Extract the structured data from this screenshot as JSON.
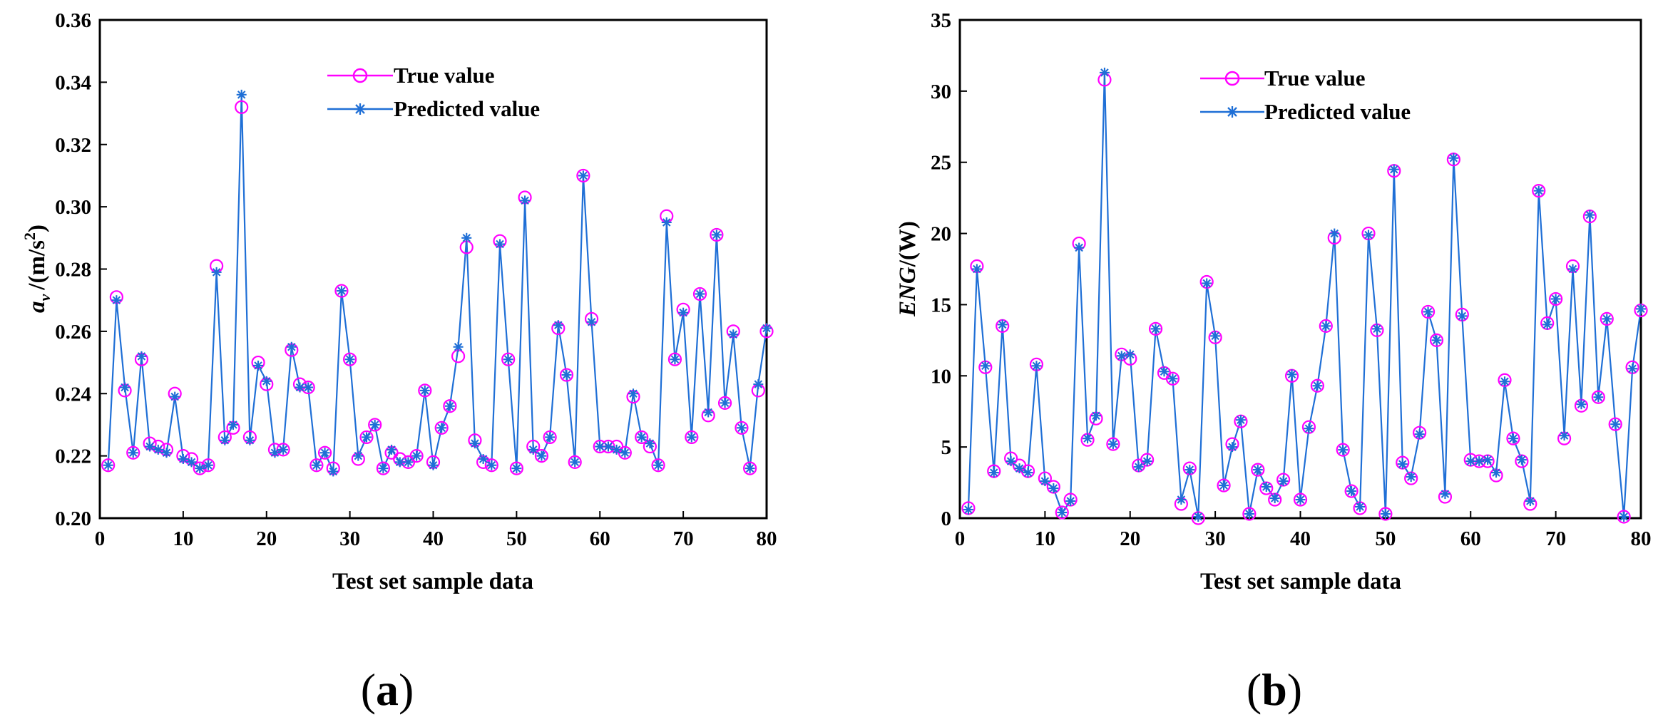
{
  "colors": {
    "true": "#ff00ff",
    "pred": "#1f6fd6",
    "axis": "#000000"
  },
  "chart_data": [
    {
      "type": "line",
      "panel_label": "a",
      "xlabel": "Test set sample data",
      "ylabel": {
        "var": "a",
        "sub": "v",
        "unit": "/(m/s",
        "sup": "2",
        "close": ")"
      },
      "xlim": [
        0,
        80
      ],
      "ylim": [
        0.2,
        0.36
      ],
      "xticks": [
        0,
        10,
        20,
        30,
        40,
        50,
        60,
        70,
        80
      ],
      "yticks": [
        0.2,
        0.22,
        0.24,
        0.26,
        0.28,
        0.3,
        0.32,
        0.34,
        0.36
      ],
      "ytick_labels": [
        "0.20",
        "0.22",
        "0.24",
        "0.26",
        "0.28",
        "0.30",
        "0.32",
        "0.34",
        "0.36"
      ],
      "legend": {
        "position": "top-center",
        "entries": [
          "True value",
          "Predicted value"
        ]
      },
      "series": [
        {
          "name": "True value",
          "marker": "circle",
          "values": [
            0.217,
            0.271,
            0.241,
            0.221,
            0.251,
            0.224,
            0.223,
            0.222,
            0.24,
            0.22,
            0.219,
            0.216,
            0.217,
            0.281,
            0.226,
            0.229,
            0.332,
            0.226,
            0.25,
            0.243,
            0.222,
            0.222,
            0.254,
            0.243,
            0.242,
            0.217,
            0.221,
            0.216,
            0.273,
            0.251,
            0.219,
            0.226,
            0.23,
            0.216,
            0.221,
            0.219,
            0.218,
            0.22,
            0.241,
            0.218,
            0.229,
            0.236,
            0.252,
            0.287,
            0.225,
            0.218,
            0.217,
            0.289,
            0.251,
            0.216,
            0.303,
            0.223,
            0.22,
            0.226,
            0.261,
            0.246,
            0.218,
            0.31,
            0.264,
            0.223,
            0.223,
            0.223,
            0.221,
            0.239,
            0.226,
            0.223,
            0.217,
            0.297,
            0.251,
            0.267,
            0.226,
            0.272,
            0.233,
            0.291,
            0.237,
            0.26,
            0.229,
            0.216,
            0.241,
            0.26
          ]
        },
        {
          "name": "Predicted value",
          "marker": "star",
          "values": [
            0.217,
            0.27,
            0.242,
            0.221,
            0.252,
            0.223,
            0.222,
            0.221,
            0.239,
            0.219,
            0.218,
            0.216,
            0.217,
            0.279,
            0.225,
            0.23,
            0.336,
            0.225,
            0.249,
            0.244,
            0.221,
            0.222,
            0.255,
            0.242,
            0.242,
            0.217,
            0.221,
            0.215,
            0.273,
            0.251,
            0.22,
            0.226,
            0.23,
            0.216,
            0.222,
            0.218,
            0.218,
            0.22,
            0.241,
            0.217,
            0.229,
            0.236,
            0.255,
            0.29,
            0.224,
            0.219,
            0.217,
            0.288,
            0.251,
            0.216,
            0.302,
            0.222,
            0.22,
            0.226,
            0.262,
            0.246,
            0.218,
            0.31,
            0.263,
            0.223,
            0.223,
            0.222,
            0.221,
            0.24,
            0.226,
            0.224,
            0.217,
            0.295,
            0.251,
            0.266,
            0.226,
            0.272,
            0.234,
            0.291,
            0.237,
            0.259,
            0.229,
            0.216,
            0.243,
            0.261
          ]
        }
      ]
    },
    {
      "type": "line",
      "panel_label": "b",
      "xlabel": "Test set sample data",
      "ylabel": {
        "var": "ENG",
        "unit": "/(W)"
      },
      "xlim": [
        0,
        80
      ],
      "ylim": [
        0,
        35
      ],
      "xticks": [
        0,
        10,
        20,
        30,
        40,
        50,
        60,
        70,
        80
      ],
      "yticks": [
        0,
        5,
        10,
        15,
        20,
        25,
        30,
        35
      ],
      "ytick_labels": [
        "0",
        "5",
        "10",
        "15",
        "20",
        "25",
        "30",
        "35"
      ],
      "legend": {
        "position": "top-center",
        "entries": [
          "True value",
          "Predicted value"
        ]
      },
      "series": [
        {
          "name": "True value",
          "marker": "circle",
          "values": [
            0.7,
            17.7,
            10.6,
            3.3,
            13.5,
            4.2,
            3.7,
            3.3,
            10.8,
            2.8,
            2.2,
            0.4,
            1.3,
            19.3,
            5.5,
            7.0,
            30.8,
            5.2,
            11.5,
            11.2,
            3.7,
            4.1,
            13.3,
            10.2,
            9.8,
            1.0,
            3.5,
            0.0,
            16.6,
            12.7,
            2.3,
            5.2,
            6.8,
            0.3,
            3.4,
            2.1,
            1.3,
            2.7,
            10.0,
            1.3,
            6.4,
            9.3,
            13.5,
            19.7,
            4.8,
            1.9,
            0.7,
            20.0,
            13.2,
            0.3,
            24.4,
            3.9,
            2.8,
            6.0,
            14.5,
            12.5,
            1.5,
            25.2,
            14.3,
            4.1,
            4.0,
            4.0,
            3.0,
            9.7,
            5.6,
            4.0,
            1.0,
            23.0,
            13.7,
            15.4,
            5.6,
            17.7,
            7.9,
            21.2,
            8.5,
            14.0,
            6.6,
            0.1,
            10.6,
            14.6
          ]
        },
        {
          "name": "Predicted value",
          "marker": "star",
          "values": [
            0.6,
            17.5,
            10.7,
            3.2,
            13.6,
            4.0,
            3.5,
            3.2,
            10.7,
            2.6,
            2.1,
            0.4,
            1.2,
            19.0,
            5.6,
            7.2,
            31.3,
            5.2,
            11.4,
            11.5,
            3.6,
            4.0,
            13.3,
            10.3,
            9.8,
            1.3,
            3.4,
            0.1,
            16.5,
            12.8,
            2.3,
            5.0,
            6.9,
            0.3,
            3.4,
            2.2,
            1.4,
            2.6,
            10.1,
            1.3,
            6.3,
            9.3,
            13.5,
            20.0,
            4.8,
            1.9,
            0.8,
            19.9,
            13.3,
            0.3,
            24.5,
            3.8,
            2.9,
            5.9,
            14.5,
            12.5,
            1.7,
            25.3,
            14.2,
            4.0,
            4.0,
            4.1,
            3.2,
            9.6,
            5.6,
            4.1,
            1.2,
            23.0,
            13.6,
            15.4,
            5.8,
            17.5,
            8.0,
            21.3,
            8.5,
            14.0,
            6.6,
            0.1,
            10.5,
            14.7
          ]
        }
      ]
    }
  ]
}
